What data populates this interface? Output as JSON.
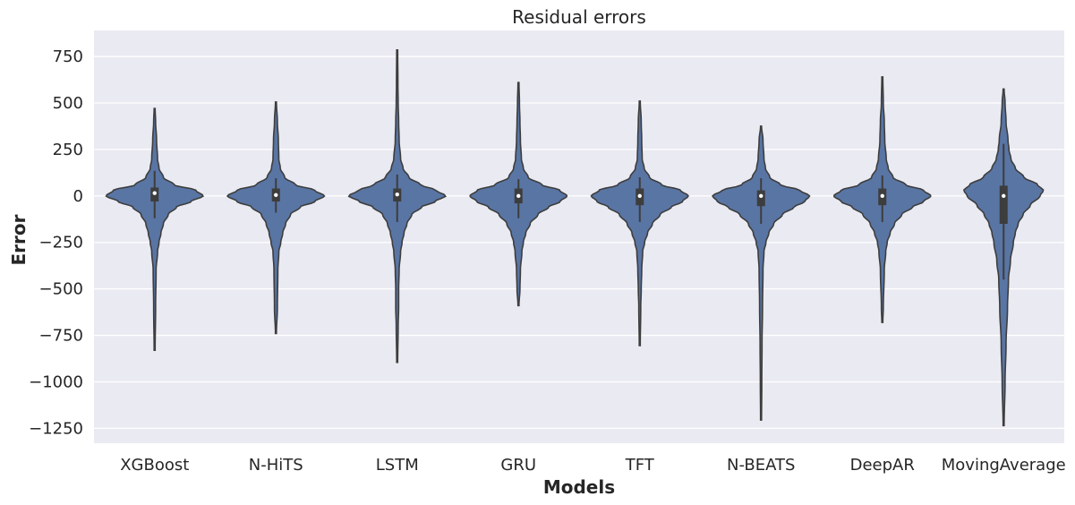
{
  "chart_data": {
    "type": "violin",
    "title": "Residual errors",
    "xlabel": "Models",
    "ylabel": "Error",
    "ylim": [
      -1330,
      890
    ],
    "yticks": [
      750,
      500,
      250,
      0,
      -250,
      -500,
      -750,
      -1000,
      -1250
    ],
    "ytick_labels": [
      "750",
      "500",
      "250",
      "0",
      "−250",
      "−500",
      "−750",
      "−1000",
      "−1250"
    ],
    "grid": true,
    "background_color": "#eaeaf2",
    "violin_color": "#5975a4",
    "edge_color": "#3d3d3d",
    "categories": [
      "XGBoost",
      "N-HiTS",
      "LSTM",
      "GRU",
      "TFT",
      "N-BEATS",
      "DeepAR",
      "MovingAverage"
    ],
    "violins": [
      {
        "model": "XGBoost",
        "min": -830,
        "max": 470,
        "q1": -30,
        "median": 15,
        "q3": 45,
        "whisker_low": -120,
        "whisker_high": 135,
        "profile": [
          [
            -830,
            1
          ],
          [
            -600,
            2
          ],
          [
            -400,
            3
          ],
          [
            -300,
            6
          ],
          [
            -250,
            9
          ],
          [
            -200,
            13
          ],
          [
            -150,
            18
          ],
          [
            -100,
            28
          ],
          [
            -60,
            45
          ],
          [
            -30,
            75
          ],
          [
            0,
            100
          ],
          [
            30,
            85
          ],
          [
            60,
            40
          ],
          [
            100,
            18
          ],
          [
            150,
            9
          ],
          [
            200,
            6
          ],
          [
            300,
            4
          ],
          [
            400,
            2
          ],
          [
            470,
            1
          ]
        ]
      },
      {
        "model": "N-HiTS",
        "min": -740,
        "max": 505,
        "q1": -30,
        "median": 5,
        "q3": 40,
        "whisker_low": -90,
        "whisker_high": 95,
        "profile": [
          [
            -740,
            1
          ],
          [
            -600,
            3
          ],
          [
            -400,
            4
          ],
          [
            -300,
            6
          ],
          [
            -250,
            10
          ],
          [
            -200,
            14
          ],
          [
            -150,
            20
          ],
          [
            -100,
            30
          ],
          [
            -60,
            50
          ],
          [
            -30,
            80
          ],
          [
            0,
            100
          ],
          [
            30,
            80
          ],
          [
            60,
            40
          ],
          [
            100,
            18
          ],
          [
            150,
            9
          ],
          [
            200,
            6
          ],
          [
            300,
            5
          ],
          [
            400,
            3
          ],
          [
            505,
            1
          ]
        ]
      },
      {
        "model": "LSTM",
        "min": -895,
        "max": 785,
        "q1": -30,
        "median": 8,
        "q3": 40,
        "whisker_low": -140,
        "whisker_high": 115,
        "profile": [
          [
            -895,
            1
          ],
          [
            -700,
            2
          ],
          [
            -600,
            3
          ],
          [
            -500,
            3
          ],
          [
            -400,
            4
          ],
          [
            -300,
            7
          ],
          [
            -250,
            10
          ],
          [
            -200,
            14
          ],
          [
            -150,
            20
          ],
          [
            -100,
            30
          ],
          [
            -60,
            50
          ],
          [
            -30,
            78
          ],
          [
            0,
            100
          ],
          [
            30,
            80
          ],
          [
            60,
            48
          ],
          [
            100,
            24
          ],
          [
            150,
            12
          ],
          [
            200,
            7
          ],
          [
            300,
            4
          ],
          [
            400,
            3
          ],
          [
            500,
            2
          ],
          [
            600,
            1.5
          ],
          [
            785,
            1
          ]
        ]
      },
      {
        "model": "GRU",
        "min": -590,
        "max": 610,
        "q1": -40,
        "median": 0,
        "q3": 40,
        "whisker_low": -120,
        "whisker_high": 90,
        "profile": [
          [
            -590,
            1
          ],
          [
            -500,
            3
          ],
          [
            -400,
            4
          ],
          [
            -300,
            7
          ],
          [
            -250,
            10
          ],
          [
            -200,
            15
          ],
          [
            -150,
            24
          ],
          [
            -100,
            40
          ],
          [
            -60,
            62
          ],
          [
            -30,
            86
          ],
          [
            0,
            100
          ],
          [
            30,
            85
          ],
          [
            60,
            48
          ],
          [
            100,
            20
          ],
          [
            150,
            10
          ],
          [
            200,
            6
          ],
          [
            300,
            4
          ],
          [
            400,
            3
          ],
          [
            500,
            2
          ],
          [
            610,
            1
          ]
        ]
      },
      {
        "model": "TFT",
        "min": -805,
        "max": 510,
        "q1": -50,
        "median": 0,
        "q3": 40,
        "whisker_low": -140,
        "whisker_high": 100,
        "profile": [
          [
            -805,
            1
          ],
          [
            -600,
            2
          ],
          [
            -500,
            3
          ],
          [
            -400,
            4
          ],
          [
            -300,
            6
          ],
          [
            -250,
            10
          ],
          [
            -200,
            16
          ],
          [
            -150,
            26
          ],
          [
            -100,
            42
          ],
          [
            -60,
            65
          ],
          [
            -30,
            88
          ],
          [
            0,
            100
          ],
          [
            30,
            84
          ],
          [
            60,
            45
          ],
          [
            100,
            20
          ],
          [
            150,
            9
          ],
          [
            200,
            5
          ],
          [
            300,
            4
          ],
          [
            400,
            3
          ],
          [
            510,
            1
          ]
        ]
      },
      {
        "model": "N-BEATS",
        "min": -1205,
        "max": 375,
        "q1": -55,
        "median": 0,
        "q3": 30,
        "whisker_low": -150,
        "whisker_high": 95,
        "profile": [
          [
            -1205,
            1
          ],
          [
            -1000,
            1.5
          ],
          [
            -800,
            2
          ],
          [
            -600,
            3
          ],
          [
            -400,
            4
          ],
          [
            -300,
            6
          ],
          [
            -250,
            10
          ],
          [
            -200,
            16
          ],
          [
            -150,
            26
          ],
          [
            -100,
            44
          ],
          [
            -60,
            68
          ],
          [
            -30,
            90
          ],
          [
            0,
            100
          ],
          [
            30,
            80
          ],
          [
            60,
            40
          ],
          [
            100,
            18
          ],
          [
            150,
            9
          ],
          [
            200,
            6
          ],
          [
            300,
            4
          ],
          [
            375,
            1
          ]
        ]
      },
      {
        "model": "DeepAR",
        "min": -680,
        "max": 640,
        "q1": -50,
        "median": 0,
        "q3": 40,
        "whisker_low": -140,
        "whisker_high": 110,
        "profile": [
          [
            -680,
            1
          ],
          [
            -600,
            2
          ],
          [
            -400,
            4
          ],
          [
            -300,
            7
          ],
          [
            -250,
            10
          ],
          [
            -200,
            16
          ],
          [
            -150,
            25
          ],
          [
            -100,
            40
          ],
          [
            -60,
            62
          ],
          [
            -30,
            85
          ],
          [
            0,
            100
          ],
          [
            30,
            85
          ],
          [
            60,
            48
          ],
          [
            100,
            22
          ],
          [
            150,
            12
          ],
          [
            200,
            8
          ],
          [
            300,
            5
          ],
          [
            400,
            4
          ],
          [
            500,
            2
          ],
          [
            640,
            1
          ]
        ]
      },
      {
        "model": "MovingAverage",
        "min": -1235,
        "max": 575,
        "q1": -150,
        "median": 0,
        "q3": 55,
        "whisker_low": -450,
        "whisker_high": 280,
        "profile": [
          [
            -1235,
            1
          ],
          [
            -1000,
            3
          ],
          [
            -800,
            5
          ],
          [
            -600,
            8
          ],
          [
            -450,
            10
          ],
          [
            -350,
            14
          ],
          [
            -250,
            20
          ],
          [
            -200,
            24
          ],
          [
            -150,
            30
          ],
          [
            -100,
            40
          ],
          [
            -50,
            55
          ],
          [
            0,
            75
          ],
          [
            30,
            82
          ],
          [
            60,
            70
          ],
          [
            100,
            42
          ],
          [
            150,
            24
          ],
          [
            200,
            15
          ],
          [
            250,
            11
          ],
          [
            300,
            9
          ],
          [
            400,
            5
          ],
          [
            500,
            3
          ],
          [
            575,
            1
          ]
        ]
      }
    ]
  }
}
